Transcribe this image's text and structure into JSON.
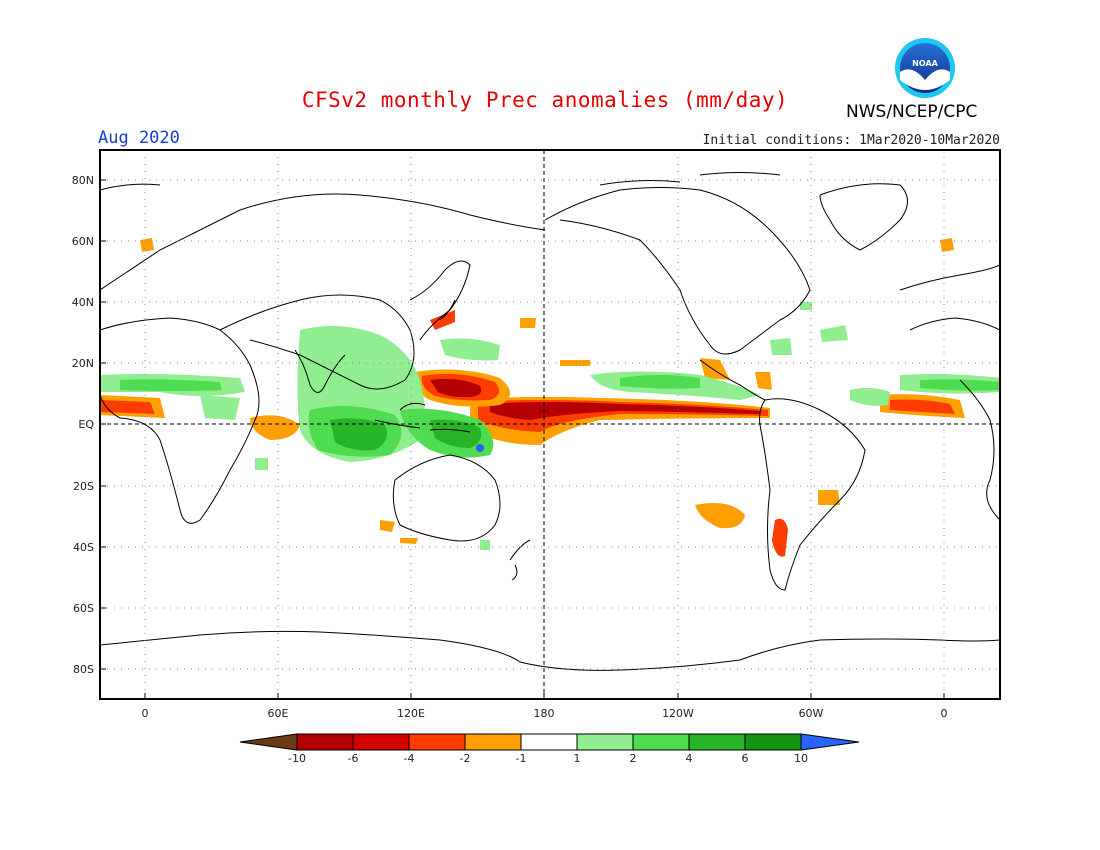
{
  "header": {
    "title": "CFSv2 monthly Prec anomalies (mm/day)",
    "agency": "NWS/NCEP/CPC",
    "period": "Aug 2020",
    "initial_conditions": "Initial conditions: 1Mar2020-10Mar2020",
    "logo_text": "NOAA"
  },
  "axes": {
    "lat_labels": [
      "80N",
      "60N",
      "40N",
      "20N",
      "EQ",
      "20S",
      "40S",
      "60S",
      "80S"
    ],
    "lon_labels": [
      "0",
      "60E",
      "120E",
      "180",
      "120W",
      "60W",
      "0"
    ]
  },
  "colorbar": {
    "labels": [
      "-10",
      "-6",
      "-4",
      "-2",
      "-1",
      "1",
      "2",
      "4",
      "6",
      "10"
    ],
    "colors": [
      "#6b3a17",
      "#b40000",
      "#d20000",
      "#ff3c00",
      "#ffa000",
      "#ffffff",
      "#90ee90",
      "#50dc50",
      "#28b428",
      "#149614",
      "#2864ff"
    ]
  },
  "colors": {
    "title": "#e60000",
    "period": "#1a3ccc",
    "wet_light": "#90ee90",
    "wet_mid": "#50dc50",
    "wet_dark": "#28b428",
    "dry_light": "#ffa000",
    "dry_mid": "#ff3c00",
    "dry_dark": "#b40000"
  }
}
